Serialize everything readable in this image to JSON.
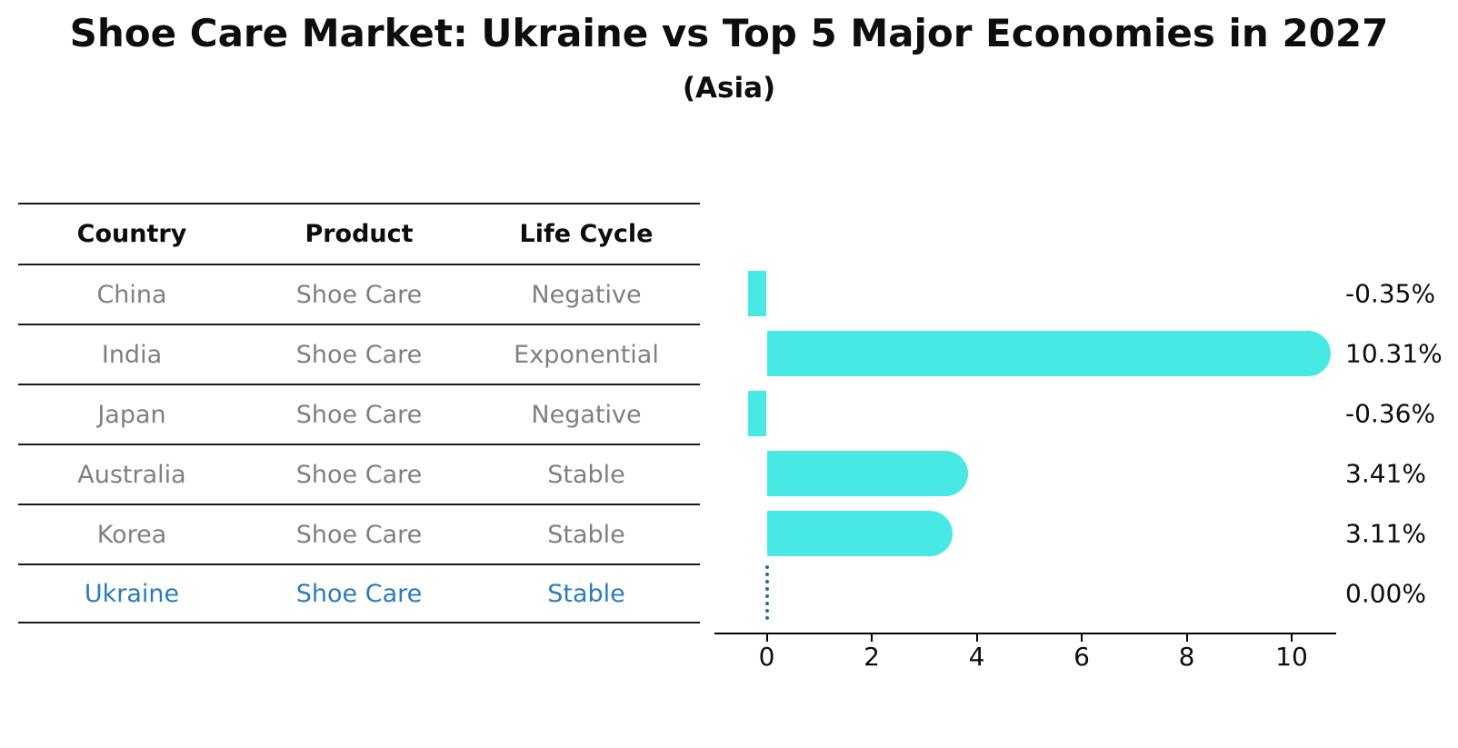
{
  "title": "Shoe Care Market: Ukraine vs Top 5 Major Economies in 2027",
  "subtitle": "(Asia)",
  "table": {
    "columns": [
      "Country",
      "Product",
      "Life Cycle"
    ],
    "rows": [
      {
        "country": "China",
        "product": "Shoe Care",
        "life_cycle": "Negative",
        "highlight": false
      },
      {
        "country": "India",
        "product": "Shoe Care",
        "life_cycle": "Exponential",
        "highlight": false
      },
      {
        "country": "Japan",
        "product": "Shoe Care",
        "life_cycle": "Negative",
        "highlight": false
      },
      {
        "country": "Australia",
        "product": "Shoe Care",
        "life_cycle": "Stable",
        "highlight": false
      },
      {
        "country": "Korea",
        "product": "Shoe Care",
        "life_cycle": "Stable",
        "highlight": false
      },
      {
        "country": "Ukraine",
        "product": "Shoe Care",
        "life_cycle": "Stable",
        "highlight": true
      }
    ]
  },
  "chart_data": {
    "type": "bar",
    "orientation": "horizontal",
    "title": "Shoe Care Market: Ukraine vs Top 5 Major Economies in 2027",
    "subtitle": "(Asia)",
    "categories": [
      "China",
      "India",
      "Japan",
      "Australia",
      "Korea",
      "Ukraine"
    ],
    "values": [
      -0.35,
      10.31,
      -0.36,
      3.41,
      3.11,
      0.0
    ],
    "value_labels": [
      "-0.35%",
      "10.31%",
      "-0.36%",
      "3.41%",
      "3.11%",
      "0.00%"
    ],
    "x_ticks": [
      0,
      2,
      4,
      6,
      8,
      10
    ],
    "xlim": [
      -1.0,
      10.85
    ],
    "xlabel": "",
    "ylabel": "",
    "grid": false,
    "legend": false
  },
  "colors": {
    "bar_fill": "#48E8E4",
    "zero_dotted_line": "#31688E",
    "highlight_text": "#2B7BBF",
    "body_text": "#808080",
    "header_text": "#0d0d0d"
  }
}
